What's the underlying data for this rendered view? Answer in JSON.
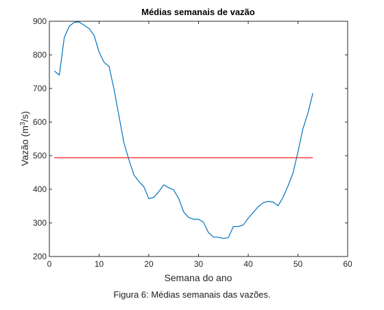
{
  "chart_data": {
    "type": "line",
    "title": "Médias semanais de vazão",
    "xlabel": "Semana do ano",
    "ylabel_prefix": "Vazão (m",
    "ylabel_sup": "3",
    "ylabel_suffix": "/s)",
    "xlim": [
      0,
      60
    ],
    "ylim": [
      200,
      900
    ],
    "xticks": [
      0,
      10,
      20,
      30,
      40,
      50,
      60
    ],
    "yticks": [
      200,
      300,
      400,
      500,
      600,
      700,
      800,
      900
    ],
    "grid": false,
    "series": [
      {
        "color": "#0072bd",
        "x": [
          1,
          2,
          3,
          4,
          5,
          6,
          7,
          8,
          9,
          10,
          11,
          12,
          13,
          14,
          15,
          16,
          17,
          18,
          19,
          20,
          21,
          22,
          23,
          24,
          25,
          26,
          27,
          28,
          29,
          30,
          31,
          32,
          33,
          34,
          35,
          36,
          37,
          38,
          39,
          40,
          41,
          42,
          43,
          44,
          45,
          46,
          47,
          48,
          49,
          50,
          51,
          52,
          53
        ],
        "y": [
          752,
          740,
          852,
          885,
          897,
          898,
          888,
          878,
          858,
          808,
          778,
          766,
          698,
          618,
          538,
          488,
          443,
          423,
          408,
          372,
          376,
          393,
          413,
          405,
          398,
          373,
          333,
          316,
          311,
          311,
          302,
          271,
          258,
          257,
          254,
          256,
          289,
          289,
          294,
          314,
          331,
          348,
          360,
          364,
          362,
          351,
          376,
          410,
          448,
          511,
          580,
          626,
          686
        ]
      },
      {
        "color": "#ff0000",
        "x": [
          1,
          53
        ],
        "y": [
          494,
          494
        ]
      }
    ]
  },
  "caption": "Figura 6: Médias semanais das vazões."
}
